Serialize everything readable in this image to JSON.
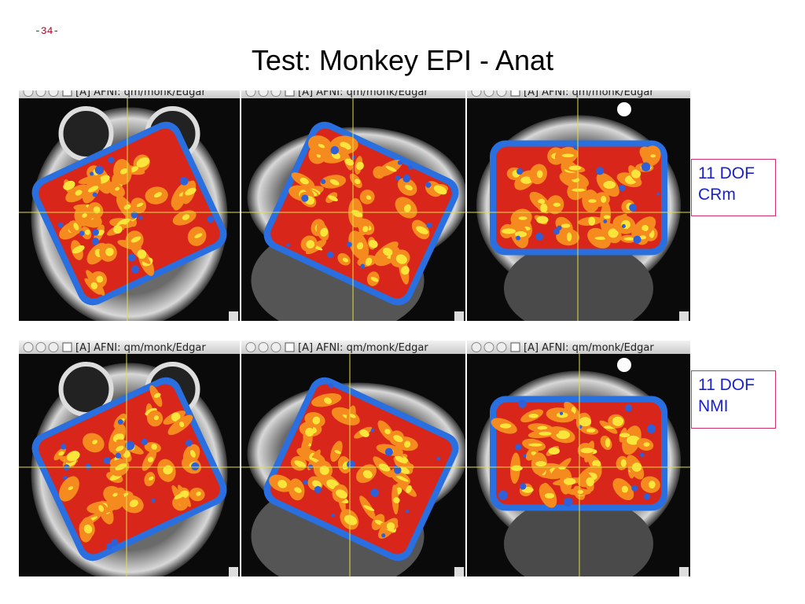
{
  "page_number": "-34-",
  "title": "Test: Monkey EPI - Anat",
  "rows": [
    {
      "panels": [
        {
          "window_title": "[A] AFNI: qm/monk/Edgar"
        },
        {
          "window_title": "[A] AFNI: qm/monk/Edgar"
        },
        {
          "window_title": "[A] AFNI: qm/monk/Edgar"
        }
      ],
      "label": [
        "11 DOF",
        "CRm"
      ]
    },
    {
      "panels": [
        {
          "window_title": "[A] AFNI: qm/monk/Edgar"
        },
        {
          "window_title": "[A] AFNI: qm/monk/Edgar"
        },
        {
          "window_title": "[A] AFNI: qm/monk/Edgar"
        }
      ],
      "label": [
        "11 DOF",
        "NMI"
      ]
    }
  ]
}
